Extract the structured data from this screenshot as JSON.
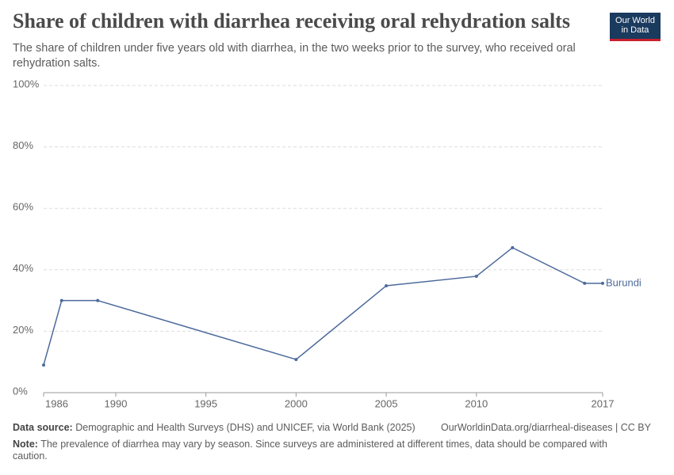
{
  "chart_data": {
    "type": "line",
    "title": "Share of children with diarrhea receiving oral rehydration salts",
    "subtitle": "The share of children under five years old with diarrhea, in the two weeks prior to the survey, who received oral rehydration salts.",
    "x": [
      1986,
      1987,
      1989,
      2000,
      2005,
      2010,
      2012,
      2016,
      2017
    ],
    "series": [
      {
        "name": "Burundi",
        "color": "#4c6a9c",
        "values": [
          9,
          30,
          30,
          10.8,
          34.8,
          37.9,
          47.2,
          35.6,
          35.6
        ]
      }
    ],
    "xlim": [
      1986,
      2017
    ],
    "ylim": [
      0,
      100
    ],
    "xticks": [
      1986,
      1990,
      1995,
      2000,
      2005,
      2010,
      2017
    ],
    "yticks": [
      {
        "value": 0,
        "label": "0%"
      },
      {
        "value": 20,
        "label": "20%"
      },
      {
        "value": 40,
        "label": "40%"
      },
      {
        "value": 60,
        "label": "60%"
      },
      {
        "value": 80,
        "label": "80%"
      },
      {
        "value": 100,
        "label": "100%"
      }
    ],
    "grid": true
  },
  "logo": {
    "line1": "Our World",
    "line2": "in Data"
  },
  "footer": {
    "source_label": "Data source:",
    "source": "Demographic and Health Surveys (DHS) and UNICEF, via World Bank (2025)",
    "url": "OurWorldinData.org/diarrheal-diseases | CC BY",
    "note_label": "Note:",
    "note": "The prevalence of diarrhea may vary by season. Since surveys are administered at different times, data should be compared with caution."
  }
}
